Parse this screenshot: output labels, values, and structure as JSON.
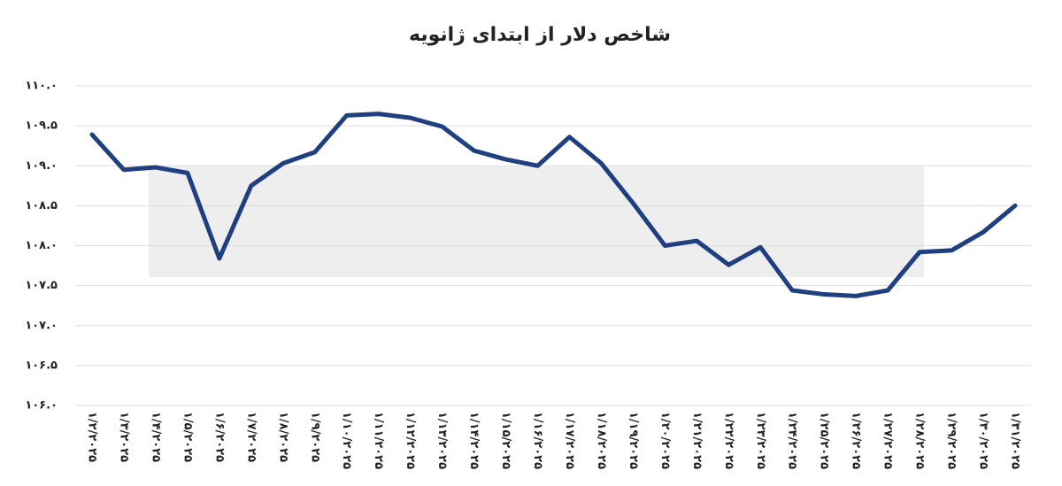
{
  "chart_data": {
    "type": "line",
    "title": "شاخص دلار از ابتدای ژانویه",
    "categories": [
      "۱/۲/۲۰۲۵",
      "۱/۳/۲۰۲۵",
      "۱/۴/۲۰۲۵",
      "۱/۵/۲۰۲۵",
      "۱/۶/۲۰۲۵",
      "۱/۷/۲۰۲۵",
      "۱/۸/۲۰۲۵",
      "۱/۹/۲۰۲۵",
      "۱/۱۰/۲۰۲۵",
      "۱/۱۱/۲۰۲۵",
      "۱/۱۲/۲۰۲۵",
      "۱/۱۳/۲۰۲۵",
      "۱/۱۴/۲۰۲۵",
      "۱/۱۵/۲۰۲۵",
      "۱/۱۶/۲۰۲۵",
      "۱/۱۷/۲۰۲۵",
      "۱/۱۸/۲۰۲۵",
      "۱/۱۹/۲۰۲۵",
      "۱/۲۰/۲۰۲۵",
      "۱/۲۱/۲۰۲۵",
      "۱/۲۲/۲۰۲۵",
      "۱/۲۳/۲۰۲۵",
      "۱/۲۴/۲۰۲۵",
      "۱/۲۵/۲۰۲۵",
      "۱/۲۶/۲۰۲۵",
      "۱/۲۷/۲۰۲۵",
      "۱/۲۸/۲۰۲۵",
      "۱/۲۹/۲۰۲۵",
      "۱/۳۰/۲۰۲۵",
      "۱/۳۱/۲۰۲۵"
    ],
    "values": [
      109.39,
      108.95,
      108.98,
      108.91,
      107.84,
      108.75,
      109.03,
      109.17,
      109.63,
      109.65,
      109.6,
      109.49,
      109.19,
      109.08,
      109.0,
      109.36,
      109.03,
      108.53,
      108.0,
      108.06,
      107.76,
      107.98,
      107.44,
      107.39,
      107.37,
      107.44,
      107.92,
      107.94,
      108.17,
      108.5
    ],
    "color": "#1f3f80",
    "ylim": [
      106,
      110
    ],
    "yticks": [
      {
        "value": 106,
        "label": "۱۰۶.۰"
      },
      {
        "value": 106.5,
        "label": "۱۰۶.۵"
      },
      {
        "value": 107,
        "label": "۱۰۷.۰"
      },
      {
        "value": 107.5,
        "label": "۱۰۷.۵"
      },
      {
        "value": 108,
        "label": "۱۰۸.۰"
      },
      {
        "value": 108.5,
        "label": "۱۰۸.۵"
      },
      {
        "value": 109,
        "label": "۱۰۹.۰"
      },
      {
        "value": 109.5,
        "label": "۱۰۹.۵"
      },
      {
        "value": 110,
        "label": "۱۱۰.۰"
      }
    ],
    "grid": true
  }
}
